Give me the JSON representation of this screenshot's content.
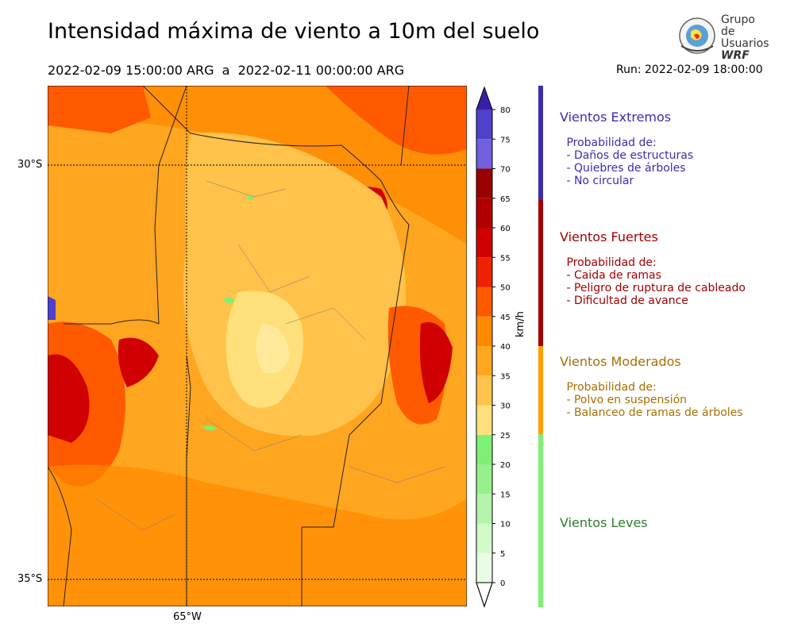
{
  "title": "Intensidad máxima de viento a 10m del suelo",
  "date_range": "2022-02-09 15:00:00 ARG  a  2022-02-11 00:00:00 ARG",
  "run": "Run: 2022-02-09 18:00:00",
  "logo": {
    "line1": "Grupo de",
    "line2": "Usuarios",
    "line3": "WRF"
  },
  "map": {
    "lat_labels": [
      "30°S",
      "35°S"
    ],
    "lon_labels": [
      "65°W"
    ]
  },
  "colorbar": {
    "label": "km/h",
    "ticks": [
      0,
      5,
      10,
      15,
      20,
      25,
      30,
      35,
      40,
      45,
      50,
      55,
      60,
      65,
      70,
      75,
      80
    ],
    "colors": [
      "#e9fde6",
      "#d2f9ca",
      "#b6f4ac",
      "#98ef8e",
      "#7df075",
      "#ffe07a",
      "#ffc24a",
      "#ffa620",
      "#ff8a00",
      "#ff5a00",
      "#ee2200",
      "#d00000",
      "#b00000",
      "#9a0000",
      "#7060e0",
      "#5040cc",
      "#3a1fa8"
    ]
  },
  "categories": [
    {
      "title": "Vientos Extremos",
      "color": "#3b2db0",
      "bar_color": "#3b2db0",
      "desc": " Probabilidad de:\n - Daños de estructuras\n - Quiebres de árboles\n - No circular"
    },
    {
      "title": "Vientos Fuertes",
      "color": "#a30000",
      "bar_color": "#a30000",
      "desc": " Probabilidad de:\n - Caida de ramas\n - Peligro de ruptura de cableado\n - Dificultad de avance"
    },
    {
      "title": "Vientos Moderados",
      "color": "#a87000",
      "bar_color": "#ff9f00",
      "desc": " Probabilidad de:\n - Polvo en suspensión\n - Balanceo de ramas de árboles"
    },
    {
      "title": "Vientos Leves",
      "color": "#2e7d2e",
      "bar_color": "#7df075",
      "desc": ""
    }
  ]
}
